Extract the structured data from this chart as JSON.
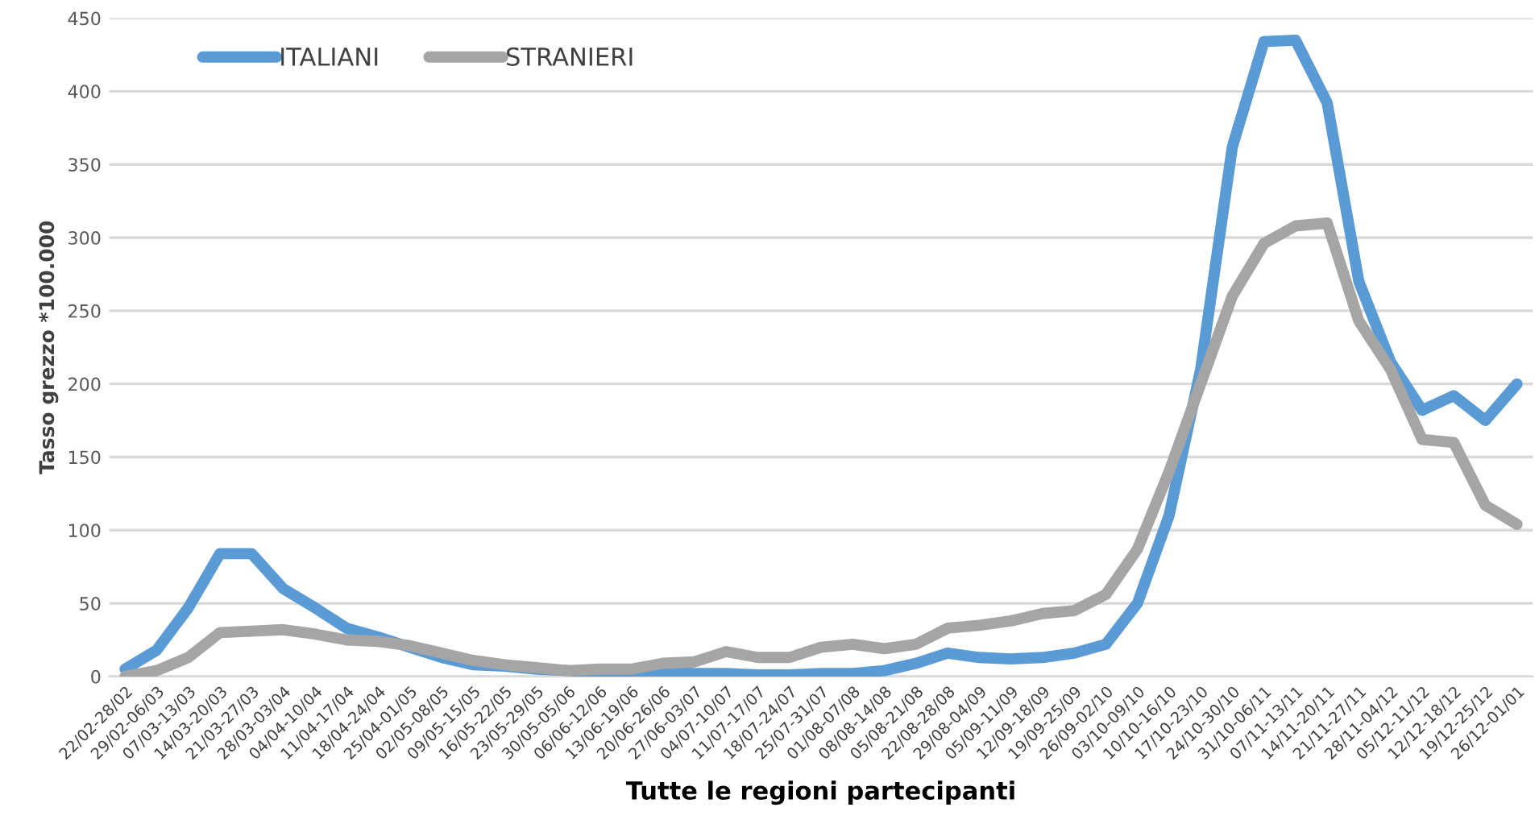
{
  "chart_data": {
    "type": "line",
    "xlabel": "Tutte le regioni partecipanti",
    "ylabel": "Tasso grezzo *100.000",
    "categories": [
      "22/02-28/02",
      "29/02-06/03",
      "07/03-13/03",
      "14/03-20/03",
      "21/03-27/03",
      "28/03-03/04",
      "04/04-10/04",
      "11/04-17/04",
      "18/04-24/04",
      "25/04-01/05",
      "02/05-08/05",
      "09/05-15/05",
      "16/05-22/05",
      "23/05-29/05",
      "30/05-05/06",
      "06/06-12/06",
      "13/06-19/06",
      "20/06-26/06",
      "27/06-03/07",
      "04/07-10/07",
      "11/07-17/07",
      "18/07-24/07",
      "25/07-31/07",
      "01/08-07/08",
      "08/08-14/08",
      "05/08-21/08",
      "22/08-28/08",
      "29/08-04/09",
      "05/09-11/09",
      "12/09-18/09",
      "19/09-25/09",
      "26/09-02/10",
      "03/10-09/10",
      "10/10-16/10",
      "17/10-23/10",
      "24/10-30/10",
      "31/10-06/11",
      "07/11-13/11",
      "14/11-20/11",
      "21/11-27/11",
      "28/11-04/12",
      "05/12-11/12",
      "12/12-18/12",
      "19/12-25/12",
      "26/12-01/01"
    ],
    "series": [
      {
        "name": "ITALIANI",
        "color": "#5b9bd5",
        "values": [
          5,
          18,
          47,
          84,
          84,
          60,
          47,
          33,
          27,
          20,
          13,
          8,
          7,
          5,
          4,
          3,
          3,
          3,
          2,
          2,
          1,
          1,
          2,
          2,
          4,
          9,
          16,
          13,
          12,
          13,
          16,
          22,
          50,
          110,
          210,
          362,
          434,
          435,
          392,
          270,
          215,
          182,
          192,
          175,
          200
        ]
      },
      {
        "name": "STRANIERI",
        "color": "#a5a5a5",
        "values": [
          0,
          4,
          13,
          30,
          31,
          32,
          29,
          25,
          24,
          21,
          16,
          11,
          8,
          6,
          4,
          5,
          5,
          9,
          10,
          17,
          13,
          13,
          20,
          22,
          19,
          22,
          33,
          35,
          38,
          43,
          45,
          56,
          87,
          140,
          200,
          260,
          296,
          308,
          310,
          243,
          210,
          162,
          160,
          117,
          104
        ]
      }
    ],
    "ylim": [
      0,
      450
    ],
    "yticks": [
      0,
      50,
      100,
      150,
      200,
      250,
      300,
      350,
      400,
      450
    ],
    "grid": "y",
    "legend": "top left",
    "marker": "none",
    "line_style": "solid"
  }
}
